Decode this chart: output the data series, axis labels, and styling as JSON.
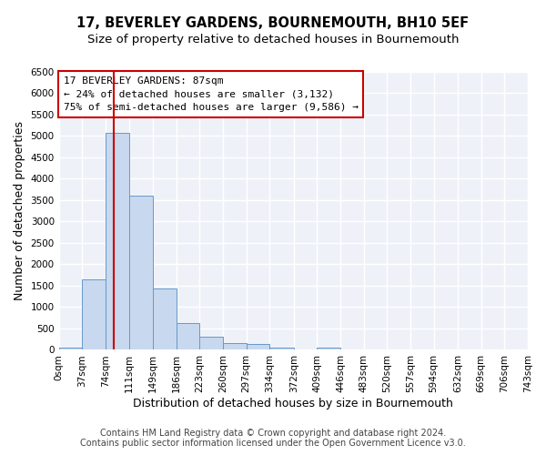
{
  "title": "17, BEVERLEY GARDENS, BOURNEMOUTH, BH10 5EF",
  "subtitle": "Size of property relative to detached houses in Bournemouth",
  "xlabel": "Distribution of detached houses by size in Bournemouth",
  "ylabel": "Number of detached properties",
  "bin_edges": [
    0,
    37,
    74,
    111,
    149,
    186,
    223,
    260,
    297,
    334,
    372,
    409,
    446,
    483,
    520,
    557,
    594,
    632,
    669,
    706,
    743
  ],
  "bar_heights": [
    50,
    1650,
    5080,
    3600,
    1430,
    620,
    310,
    155,
    130,
    60,
    0,
    50,
    0,
    0,
    0,
    0,
    0,
    0,
    0,
    0
  ],
  "bar_color": "#c8d8ee",
  "bar_edge_color": "#6699cc",
  "property_size": 87,
  "vline_color": "#cc0000",
  "annotation_line1": "17 BEVERLEY GARDENS: 87sqm",
  "annotation_line2": "← 24% of detached houses are smaller (3,132)",
  "annotation_line3": "75% of semi-detached houses are larger (9,586) →",
  "annotation_box_edge_color": "#cc0000",
  "ylim": [
    0,
    6500
  ],
  "yticks": [
    0,
    500,
    1000,
    1500,
    2000,
    2500,
    3000,
    3500,
    4000,
    4500,
    5000,
    5500,
    6000,
    6500
  ],
  "tick_labels": [
    "0sqm",
    "37sqm",
    "74sqm",
    "111sqm",
    "149sqm",
    "186sqm",
    "223sqm",
    "260sqm",
    "297sqm",
    "334sqm",
    "372sqm",
    "409sqm",
    "446sqm",
    "483sqm",
    "520sqm",
    "557sqm",
    "594sqm",
    "632sqm",
    "669sqm",
    "706sqm",
    "743sqm"
  ],
  "footer_line1": "Contains HM Land Registry data © Crown copyright and database right 2024.",
  "footer_line2": "Contains public sector information licensed under the Open Government Licence v3.0.",
  "bg_color": "#ffffff",
  "plot_bg_color": "#eef2f8",
  "grid_color": "#ffffff",
  "title_fontsize": 10.5,
  "subtitle_fontsize": 9.5,
  "axis_label_fontsize": 9,
  "tick_fontsize": 7.5,
  "footer_fontsize": 7
}
